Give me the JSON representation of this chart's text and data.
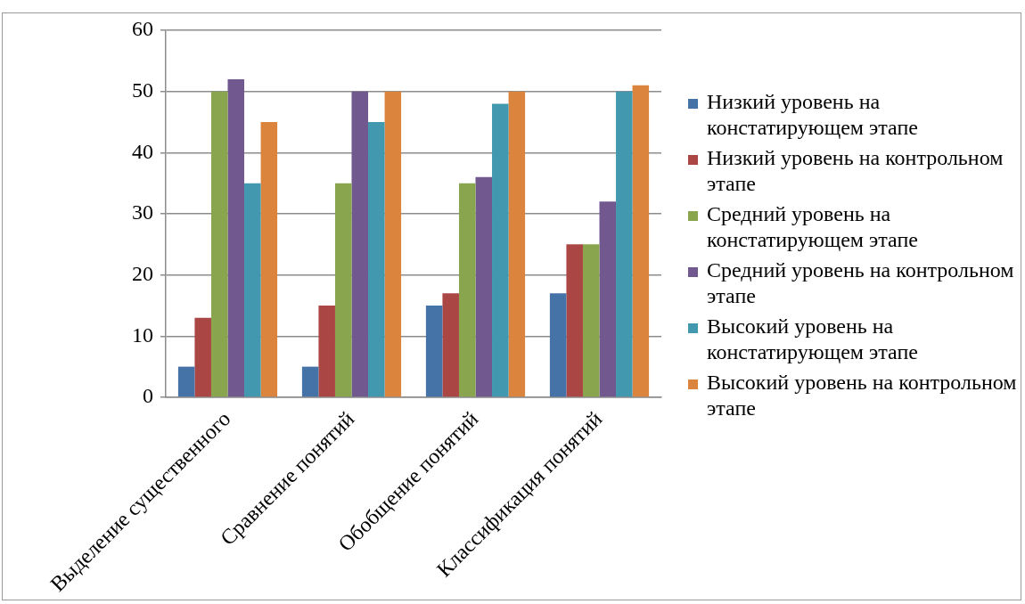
{
  "chart_data": {
    "type": "bar",
    "categories": [
      "Выделение существенного",
      "Сравнение понятий",
      "Обобщение понятий",
      "Классификация понятий"
    ],
    "series": [
      {
        "name": "Низкий уровень на констатирующем этапе",
        "color": "#4572a7",
        "values": [
          5,
          5,
          15,
          17
        ]
      },
      {
        "name": "Низкий уровень на контрольном этапе",
        "color": "#aa4643",
        "values": [
          13,
          15,
          17,
          25
        ]
      },
      {
        "name": "Средний уровень на констатирующем этапе",
        "color": "#89a54e",
        "values": [
          50,
          35,
          35,
          25
        ]
      },
      {
        "name": "Средний уровень на контрольном этапе",
        "color": "#71588f",
        "values": [
          52,
          50,
          36,
          32
        ]
      },
      {
        "name": "Высокий уровень на констатирующем этапе",
        "color": "#4198af",
        "values": [
          35,
          45,
          48,
          50
        ]
      },
      {
        "name": "Высокий уровень на контрольном этапе",
        "color": "#db843d",
        "values": [
          45,
          50,
          50,
          51
        ]
      }
    ],
    "ylim": [
      0,
      60
    ],
    "yticks": [
      0,
      10,
      20,
      30,
      40,
      50,
      60
    ],
    "grid": "y",
    "legend": "right"
  }
}
